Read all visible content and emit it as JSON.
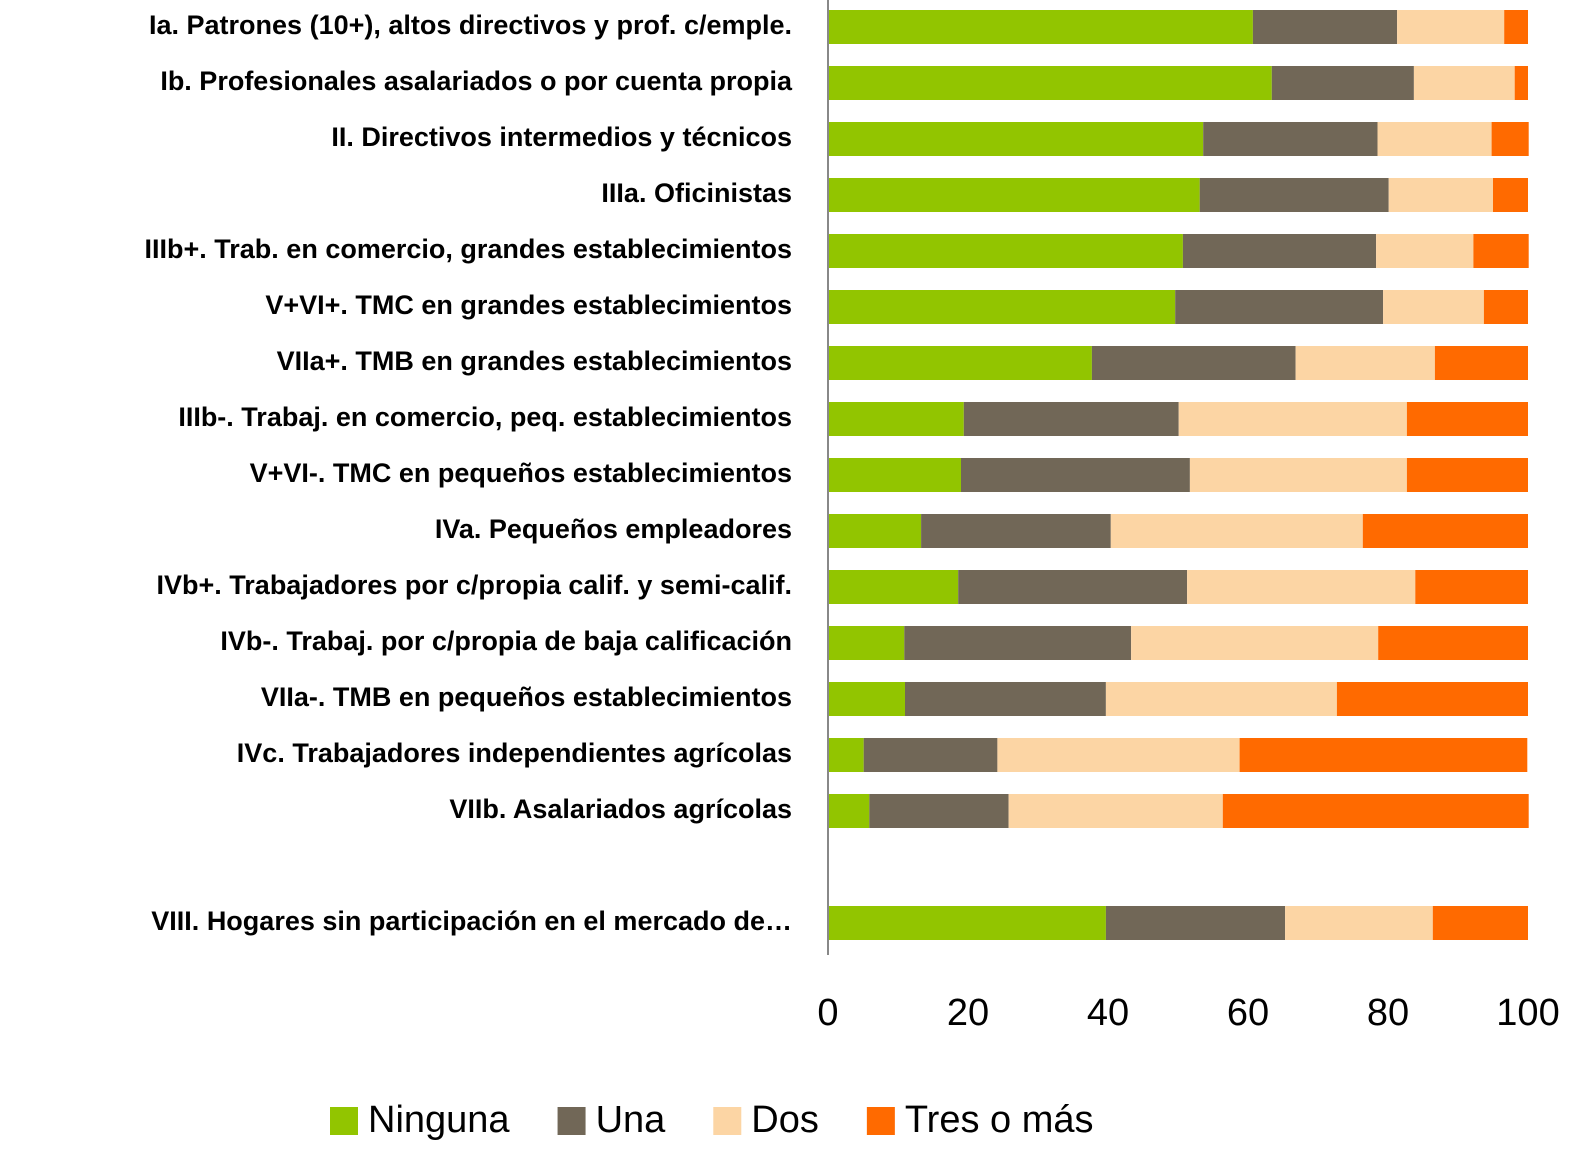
{
  "chart_data": {
    "type": "stacked_bar_horizontal",
    "categories": [
      "Ia. Patrones (10+), altos directivos y prof. c/emple.",
      "Ib. Profesionales asalariados o por cuenta propia",
      "II. Directivos intermedios y técnicos",
      "IIIa. Oficinistas",
      "IIIb+. Trab. en comercio, grandes establecimientos",
      "V+VI+. TMC en grandes establecimientos",
      "VIIa+. TMB en grandes establecimientos",
      "IIIb-. Trabaj. en comercio, peq. establecimientos",
      "V+VI-. TMC en pequeños establecimientos",
      "IVa. Pequeños empleadores",
      "IVb+. Trabajadores por c/propia calif. y semi-calif.",
      "IVb-. Trabaj. por c/propia de baja calificación",
      "VIIa-. TMB en pequeños establecimientos",
      "IVc. Trabajadores independientes agrícolas",
      "VIIb. Asalariados agrícolas",
      null,
      "VIII. Hogares sin participación en el mercado de…"
    ],
    "series": [
      {
        "name": "Ninguna",
        "color": "#92c500",
        "values": [
          60.7,
          63.4,
          53.6,
          53.1,
          50.7,
          49.6,
          37.7,
          19.4,
          19,
          13.3,
          18.6,
          10.9,
          11,
          5.1,
          5.9,
          null,
          39.7
        ]
      },
      {
        "name": "Una",
        "color": "#716757",
        "values": [
          20.6,
          20.3,
          24.9,
          27,
          27.6,
          29.7,
          29.1,
          30.7,
          32.7,
          27.1,
          32.7,
          32.4,
          28.7,
          19.1,
          19.9,
          null,
          25.6
        ]
      },
      {
        "name": "Dos",
        "color": "#fcd5a4",
        "values": [
          15.3,
          14.4,
          16.3,
          14.9,
          13.9,
          14.4,
          19.9,
          32.6,
          31,
          36,
          32.6,
          35.3,
          33,
          34.6,
          30.6,
          null,
          21.1
        ]
      },
      {
        "name": "Tres o más",
        "color": "#ff6a00",
        "values": [
          3.4,
          1.9,
          5.3,
          5,
          7.9,
          6.3,
          13.3,
          17.3,
          17.3,
          23.6,
          16.1,
          21.4,
          27.3,
          41.1,
          43.7,
          null,
          13.6
        ]
      }
    ],
    "xlim": [
      0,
      100
    ],
    "xticks": [
      0,
      20,
      40,
      60,
      80,
      100
    ],
    "legend": "bottom"
  }
}
